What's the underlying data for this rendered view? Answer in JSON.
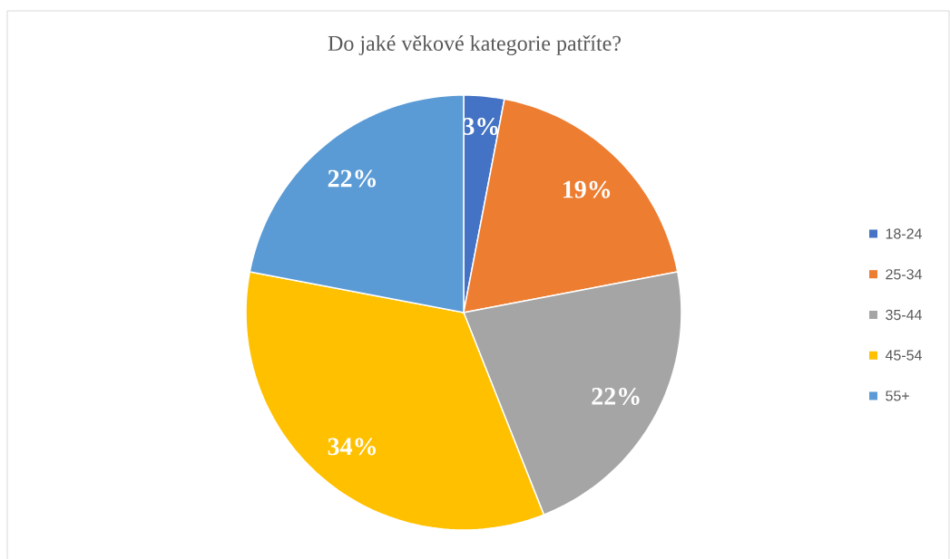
{
  "chart_data": {
    "type": "pie",
    "title": "Do jaké věkové kategorie patříte?",
    "categories": [
      "18-24",
      "25-34",
      "35-44",
      "45-54",
      "55+"
    ],
    "values": [
      3,
      19,
      22,
      34,
      22
    ],
    "colors": [
      "#4472c4",
      "#ed7d31",
      "#a5a5a5",
      "#ffc000",
      "#5b9bd5"
    ],
    "value_labels": [
      "3%",
      "19%",
      "22%",
      "34%",
      "22%"
    ],
    "legend": "right"
  }
}
